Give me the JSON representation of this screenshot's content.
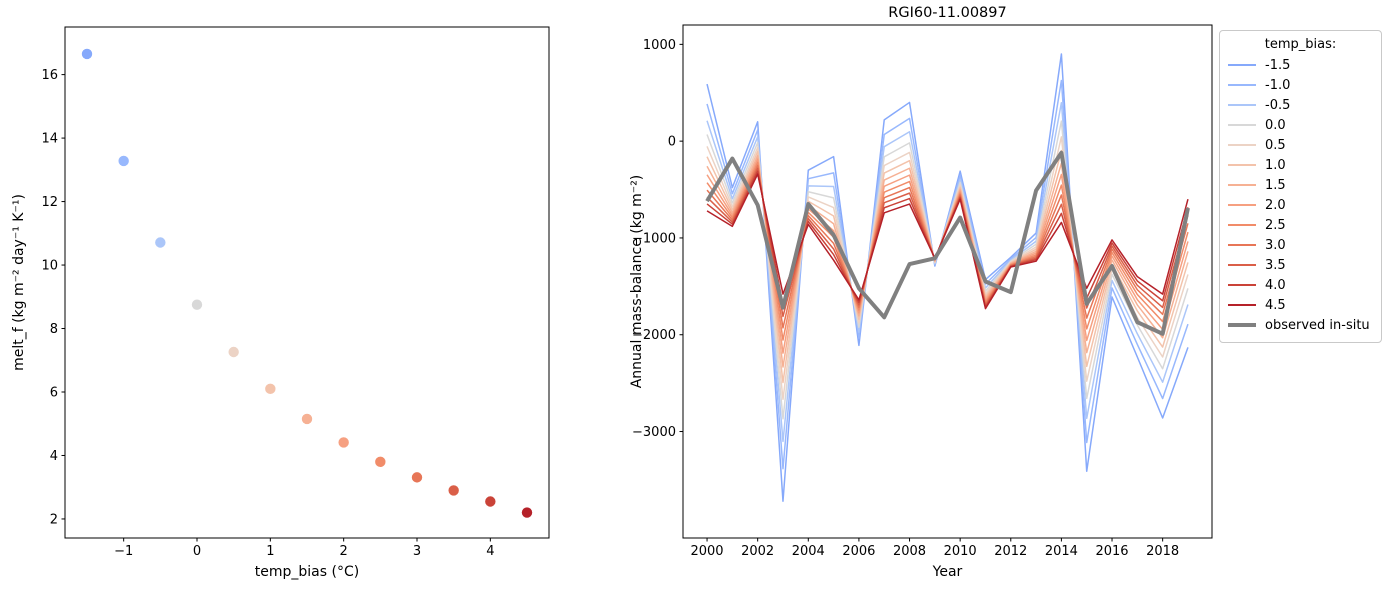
{
  "figure": {
    "background": "#ffffff"
  },
  "legend": {
    "title": "temp_bias:",
    "border_color": "#c9c9c9"
  },
  "observed_color": "#808080",
  "chart_data": [
    {
      "id": "melt-f-scatter",
      "type": "scatter",
      "title": "",
      "xlabel": "temp_bias (°C)",
      "ylabel": "melt_f (kg m⁻² day⁻¹ K⁻¹)",
      "xlim": [
        -1.8,
        4.8
      ],
      "ylim": [
        1.4,
        17.5
      ],
      "xticks": {
        "pos": [
          -1,
          0,
          1,
          2,
          3,
          4
        ],
        "labels": [
          "−1",
          "0",
          "1",
          "2",
          "3",
          "4"
        ]
      },
      "yticks": {
        "pos": [
          2,
          4,
          6,
          8,
          10,
          12,
          14,
          16
        ],
        "labels": [
          "2",
          "4",
          "6",
          "8",
          "10",
          "12",
          "14",
          "16"
        ]
      },
      "grid": false,
      "x": [
        -1.5,
        -1.0,
        -0.5,
        0.0,
        0.5,
        1.0,
        1.5,
        2.0,
        2.5,
        3.0,
        3.5,
        4.0,
        4.5
      ],
      "y": [
        16.65,
        13.28,
        10.71,
        8.75,
        7.26,
        6.1,
        5.15,
        4.41,
        3.8,
        3.31,
        2.9,
        2.55,
        2.2
      ],
      "point_colors": [
        "#86a9fb",
        "#98b8fd",
        "#abc6f9",
        "#d8d8d8",
        "#ecd3c5",
        "#f3c3ab",
        "#f6b194",
        "#f6a081",
        "#f18c69",
        "#e77657",
        "#da5f48",
        "#ca4338",
        "#b52129"
      ]
    },
    {
      "id": "mass-balance-lines",
      "type": "line",
      "title": "RGI60-11.00897",
      "xlabel": "Year",
      "ylabel": "Annual mass-balance (kg m⁻²)",
      "xlim": [
        1999.05,
        2019.95
      ],
      "ylim": [
        -4100,
        1200
      ],
      "xticks": {
        "pos": [
          2000,
          2002,
          2004,
          2006,
          2008,
          2010,
          2012,
          2014,
          2016,
          2018
        ],
        "labels": [
          "2000",
          "2002",
          "2004",
          "2006",
          "2008",
          "2010",
          "2012",
          "2014",
          "2016",
          "2018"
        ]
      },
      "yticks": {
        "pos": [
          1000,
          0,
          -1000,
          -2000,
          -3000
        ],
        "labels": [
          "1000",
          "0",
          "−1000",
          "−2000",
          "−3000"
        ]
      },
      "grid": false,
      "legend_position": "outside-right",
      "x": [
        2000,
        2001,
        2002,
        2003,
        2004,
        2005,
        2006,
        2007,
        2008,
        2009,
        2010,
        2011,
        2012,
        2013,
        2014,
        2015,
        2016,
        2017,
        2018,
        2019
      ],
      "series": [
        {
          "name": "-1.5",
          "color": "#86a9fb",
          "lw": 1.5,
          "values": [
            590,
            -480,
            200,
            -3720,
            -300,
            -160,
            -2110,
            220,
            400,
            -1290,
            -310,
            -1430,
            -1200,
            -950,
            900,
            -3410,
            -1610,
            -2230,
            -2860,
            -2130
          ]
        },
        {
          "name": "-1.0",
          "color": "#98b8fd",
          "lw": 1.5,
          "values": [
            384,
            -543,
            115,
            -3384,
            -388,
            -328,
            -2036,
            69,
            235,
            -1277,
            -356,
            -1477,
            -1216,
            -996,
            627,
            -3113,
            -1517,
            -2100,
            -2659,
            -1890
          ]
        },
        {
          "name": "-0.5",
          "color": "#abc6f9",
          "lw": 1.5,
          "values": [
            211,
            -596,
            44,
            -3102,
            -462,
            -469,
            -1974,
            -57,
            97,
            -1267,
            -394,
            -1517,
            -1229,
            -1034,
            397,
            -2864,
            -1439,
            -1990,
            -2490,
            -1688
          ]
        },
        {
          "name": "0.0",
          "color": "#d8d8d8",
          "lw": 1.5,
          "values": [
            69,
            -639,
            -15,
            -2868,
            -523,
            -586,
            -1923,
            -162,
            -18,
            -1258,
            -425,
            -1549,
            -1240,
            -1065,
            207,
            -2658,
            -1375,
            -1900,
            -2351,
            -1521
          ]
        },
        {
          "name": "0.5",
          "color": "#ecd3c5",
          "lw": 1.5,
          "values": [
            -54,
            -677,
            -66,
            -2667,
            -576,
            -686,
            -1879,
            -252,
            -117,
            -1251,
            -453,
            -1578,
            -1249,
            -1093,
            44,
            -2480,
            -1320,
            -1822,
            -2230,
            -1377
          ]
        },
        {
          "name": "1.0",
          "color": "#f3c3ab",
          "lw": 1.5,
          "values": [
            -161,
            -709,
            -109,
            -2494,
            -621,
            -773,
            -1841,
            -330,
            -202,
            -1244,
            -476,
            -1602,
            -1257,
            -1116,
            -97,
            -2327,
            -1272,
            -1754,
            -2127,
            -1253
          ]
        },
        {
          "name": "1.5",
          "color": "#f6b194",
          "lw": 1.5,
          "values": [
            -259,
            -739,
            -150,
            -2333,
            -663,
            -853,
            -1805,
            -402,
            -280,
            -1238,
            -498,
            -1624,
            -1265,
            -1138,
            -228,
            -2185,
            -1228,
            -1692,
            -2031,
            -1139
          ]
        },
        {
          "name": "2.0",
          "color": "#f6a081",
          "lw": 1.5,
          "values": [
            -347,
            -766,
            -186,
            -2190,
            -700,
            -925,
            -1774,
            -466,
            -351,
            -1233,
            -517,
            -1644,
            -1271,
            -1157,
            -344,
            -2059,
            -1188,
            -1637,
            -1945,
            -1036
          ]
        },
        {
          "name": "2.5",
          "color": "#f18c69",
          "lw": 1.5,
          "values": [
            -429,
            -791,
            -220,
            -2055,
            -736,
            -992,
            -1744,
            -527,
            -417,
            -1228,
            -536,
            -1663,
            -1278,
            -1176,
            -454,
            -1940,
            -1151,
            -1584,
            -1864,
            -940
          ]
        },
        {
          "name": "3.0",
          "color": "#e77657",
          "lw": 1.5,
          "values": [
            -506,
            -815,
            -252,
            -1929,
            -769,
            -1056,
            -1717,
            -584,
            -479,
            -1223,
            -553,
            -1681,
            -1284,
            -1193,
            -556,
            -1828,
            -1116,
            -1535,
            -1789,
            -849
          ]
        },
        {
          "name": "3.5",
          "color": "#da5f48",
          "lw": 1.5,
          "values": [
            -579,
            -837,
            -282,
            -1811,
            -800,
            -1114,
            -1691,
            -636,
            -537,
            -1219,
            -569,
            -1698,
            -1289,
            -1209,
            -652,
            -1724,
            -1084,
            -1490,
            -1718,
            -765
          ]
        },
        {
          "name": "4.0",
          "color": "#ca4338",
          "lw": 1.5,
          "values": [
            -649,
            -858,
            -311,
            -1696,
            -830,
            -1172,
            -1665,
            -688,
            -593,
            -1214,
            -584,
            -1714,
            -1295,
            -1224,
            -746,
            -1622,
            -1052,
            -1445,
            -1649,
            -683
          ]
        },
        {
          "name": "4.5",
          "color": "#b52129",
          "lw": 1.5,
          "values": [
            -720,
            -880,
            -340,
            -1580,
            -860,
            -1230,
            -1640,
            -740,
            -650,
            -1210,
            -600,
            -1730,
            -1300,
            -1240,
            -840,
            -1520,
            -1020,
            -1400,
            -1580,
            -600
          ]
        },
        {
          "name": "observed in-situ",
          "color": "#808080",
          "lw": 4,
          "values": [
            -620,
            -180,
            -660,
            -1720,
            -650,
            -970,
            -1520,
            -1820,
            -1270,
            -1210,
            -790,
            -1450,
            -1560,
            -510,
            -120,
            -1680,
            -1290,
            -1870,
            -1990,
            -690
          ]
        }
      ]
    }
  ]
}
